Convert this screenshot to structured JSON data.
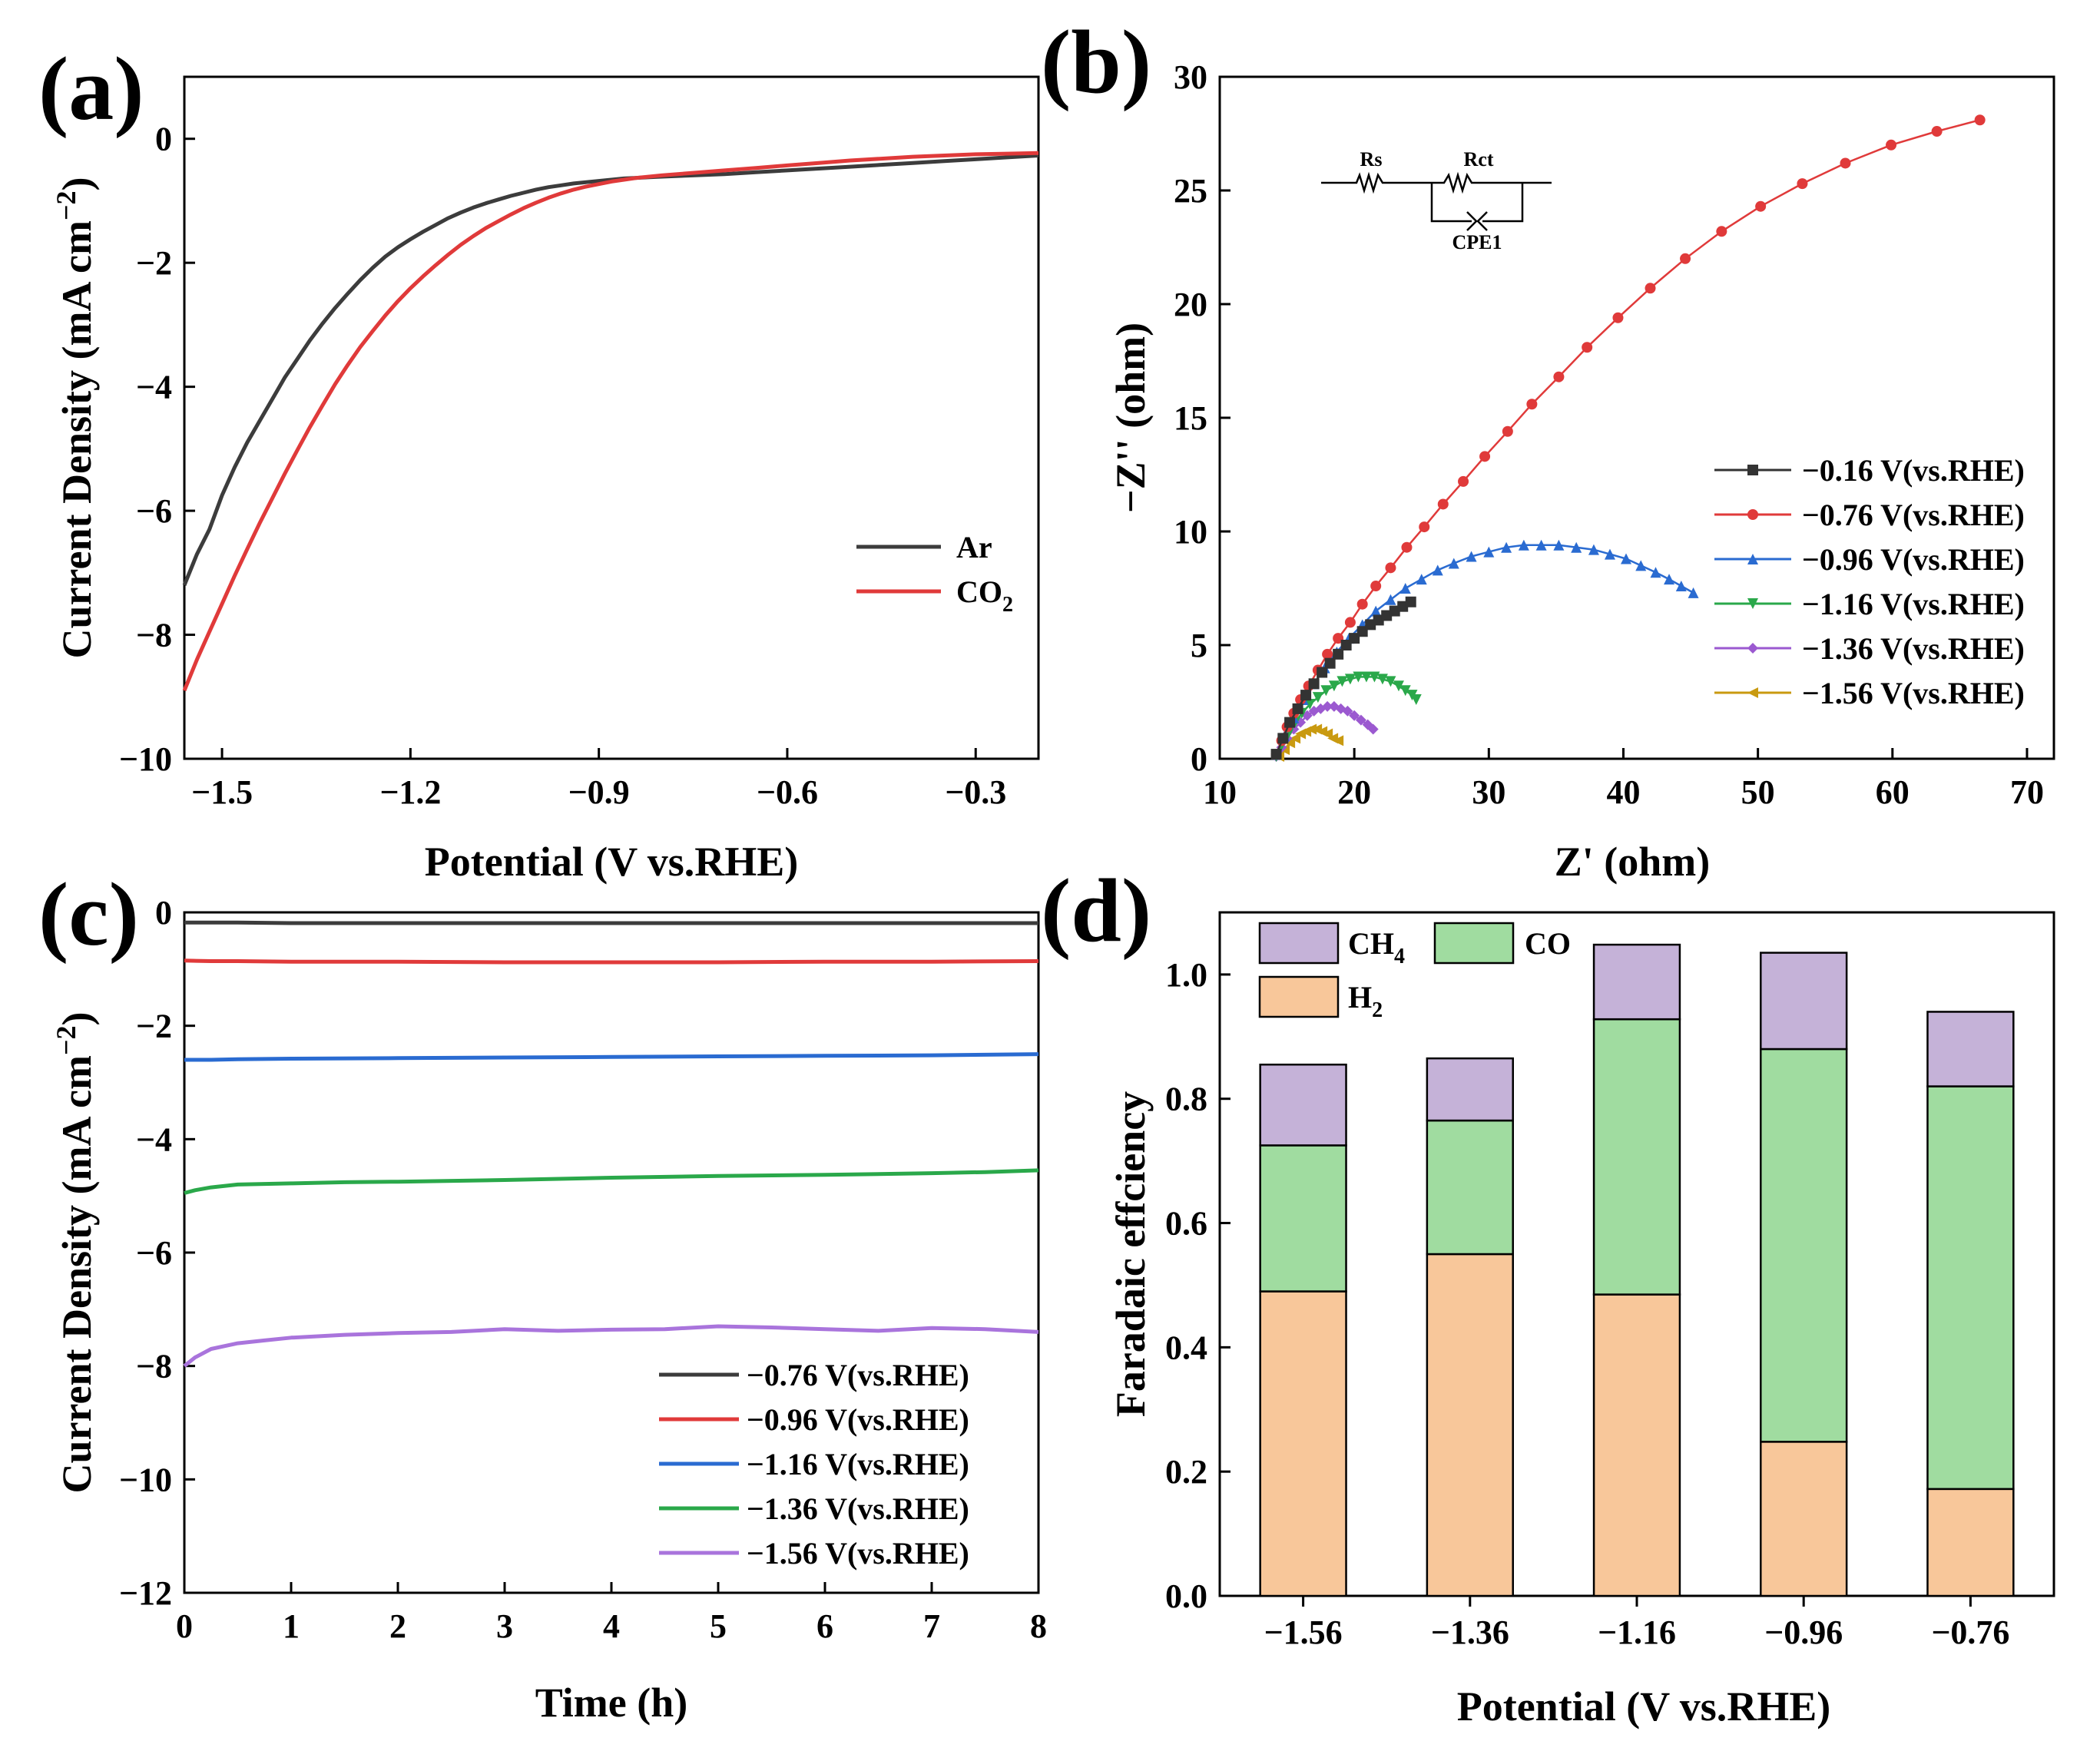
{
  "chart_data": [
    {
      "panel": "(a)",
      "type": "line",
      "xlabel": "Potential (V vs.RHE)",
      "ylabel": "Current Density (mA cm⁻²)",
      "xlim": [
        -1.56,
        -0.2
      ],
      "ylim": [
        -10,
        1
      ],
      "xticks": [
        "−1.5",
        "−1.2",
        "−0.9",
        "−0.6",
        "−0.3"
      ],
      "yticks": [
        "0",
        "−2",
        "−4",
        "−6",
        "−8",
        "−10"
      ],
      "legend_position": "lower-right",
      "series": [
        {
          "name": "Ar",
          "color": "#3c3c3c",
          "x": [
            -1.56,
            -1.54,
            -1.52,
            -1.5,
            -1.48,
            -1.46,
            -1.44,
            -1.42,
            -1.4,
            -1.38,
            -1.36,
            -1.34,
            -1.32,
            -1.3,
            -1.28,
            -1.26,
            -1.24,
            -1.22,
            -1.2,
            -1.18,
            -1.16,
            -1.14,
            -1.12,
            -1.1,
            -1.08,
            -1.06,
            -1.04,
            -1.02,
            -1.0,
            -0.98,
            -0.96,
            -0.94,
            -0.92,
            -0.9,
            -0.88,
            -0.86,
            -0.84,
            -0.82,
            -0.8,
            -0.75,
            -0.7,
            -0.65,
            -0.6,
            -0.55,
            -0.5,
            -0.45,
            -0.4,
            -0.35,
            -0.3,
            -0.25,
            -0.2
          ],
          "y": [
            -7.2,
            -6.7,
            -6.3,
            -5.75,
            -5.3,
            -4.9,
            -4.55,
            -4.2,
            -3.85,
            -3.55,
            -3.25,
            -2.98,
            -2.73,
            -2.5,
            -2.28,
            -2.08,
            -1.9,
            -1.75,
            -1.62,
            -1.5,
            -1.39,
            -1.28,
            -1.19,
            -1.11,
            -1.04,
            -0.98,
            -0.92,
            -0.87,
            -0.82,
            -0.78,
            -0.75,
            -0.72,
            -0.7,
            -0.68,
            -0.66,
            -0.64,
            -0.63,
            -0.62,
            -0.61,
            -0.59,
            -0.57,
            -0.54,
            -0.51,
            -0.48,
            -0.45,
            -0.42,
            -0.39,
            -0.36,
            -0.33,
            -0.3,
            -0.27
          ]
        },
        {
          "name": "CO2",
          "color": "#e03a3a",
          "x": [
            -1.56,
            -1.54,
            -1.52,
            -1.5,
            -1.48,
            -1.46,
            -1.44,
            -1.42,
            -1.4,
            -1.38,
            -1.36,
            -1.34,
            -1.32,
            -1.3,
            -1.28,
            -1.26,
            -1.24,
            -1.22,
            -1.2,
            -1.18,
            -1.16,
            -1.14,
            -1.12,
            -1.1,
            -1.08,
            -1.06,
            -1.04,
            -1.02,
            -1.0,
            -0.98,
            -0.96,
            -0.94,
            -0.92,
            -0.9,
            -0.88,
            -0.86,
            -0.84,
            -0.82,
            -0.8,
            -0.75,
            -0.7,
            -0.65,
            -0.6,
            -0.55,
            -0.5,
            -0.45,
            -0.4,
            -0.35,
            -0.3,
            -0.25,
            -0.2
          ],
          "y": [
            -8.9,
            -8.4,
            -7.95,
            -7.5,
            -7.05,
            -6.62,
            -6.2,
            -5.8,
            -5.4,
            -5.02,
            -4.65,
            -4.3,
            -3.96,
            -3.65,
            -3.36,
            -3.1,
            -2.85,
            -2.62,
            -2.41,
            -2.22,
            -2.04,
            -1.87,
            -1.71,
            -1.57,
            -1.44,
            -1.33,
            -1.22,
            -1.12,
            -1.03,
            -0.95,
            -0.88,
            -0.82,
            -0.77,
            -0.73,
            -0.69,
            -0.66,
            -0.63,
            -0.61,
            -0.59,
            -0.55,
            -0.51,
            -0.47,
            -0.43,
            -0.39,
            -0.35,
            -0.32,
            -0.29,
            -0.27,
            -0.25,
            -0.24,
            -0.23
          ]
        }
      ]
    },
    {
      "panel": "(b)",
      "type": "scatter",
      "xlabel": "Z' (ohm)",
      "ylabel": "−Z'' (ohm)",
      "xlim": [
        10,
        72
      ],
      "ylim": [
        0,
        30
      ],
      "xticks": [
        "10",
        "20",
        "30",
        "40",
        "50",
        "60",
        "70"
      ],
      "yticks": [
        "0",
        "5",
        "10",
        "15",
        "20",
        "25",
        "30"
      ],
      "legend_position": "right",
      "circuit_labels": [
        "Rs",
        "Rct",
        "CPE1"
      ],
      "series": [
        {
          "name": "−0.16 V(vs.RHE)",
          "color": "#333333",
          "marker": "square",
          "x": [
            14.2,
            14.7,
            15.2,
            15.8,
            16.4,
            17.0,
            17.6,
            18.2,
            18.8,
            19.4,
            20.0,
            20.6,
            21.2,
            21.8,
            22.4,
            23.0,
            23.6,
            24.2
          ],
          "y": [
            0.2,
            0.9,
            1.6,
            2.2,
            2.8,
            3.3,
            3.8,
            4.2,
            4.6,
            5.0,
            5.3,
            5.6,
            5.9,
            6.1,
            6.3,
            6.5,
            6.7,
            6.9
          ]
        },
        {
          "name": "−0.76 V(vs.RHE)",
          "color": "#e03a3a",
          "marker": "circle",
          "x": [
            14.2,
            14.6,
            15.0,
            15.5,
            16.0,
            16.6,
            17.3,
            18.0,
            18.8,
            19.7,
            20.6,
            21.6,
            22.7,
            23.9,
            25.2,
            26.6,
            28.1,
            29.7,
            31.4,
            33.2,
            35.2,
            37.3,
            39.6,
            42.0,
            44.6,
            47.3,
            50.2,
            53.3,
            56.5,
            59.9,
            63.3,
            66.5
          ],
          "y": [
            0.2,
            0.8,
            1.4,
            2.0,
            2.6,
            3.2,
            3.9,
            4.6,
            5.3,
            6.0,
            6.8,
            7.6,
            8.4,
            9.3,
            10.2,
            11.2,
            12.2,
            13.3,
            14.4,
            15.6,
            16.8,
            18.1,
            19.4,
            20.7,
            22.0,
            23.2,
            24.3,
            25.3,
            26.2,
            27.0,
            27.6,
            28.1
          ]
        },
        {
          "name": "−0.96 V(vs.RHE)",
          "color": "#2a6bd1",
          "marker": "triangle-up",
          "x": [
            14.2,
            14.8,
            15.5,
            16.2,
            17.0,
            17.8,
            18.7,
            19.6,
            20.6,
            21.6,
            22.7,
            23.8,
            25.0,
            26.2,
            27.4,
            28.7,
            30.0,
            31.3,
            32.6,
            33.9,
            35.2,
            36.5,
            37.8,
            39.0,
            40.2,
            41.3,
            42.4,
            43.4,
            44.3,
            45.2
          ],
          "y": [
            0.2,
            1.0,
            1.8,
            2.6,
            3.3,
            4.0,
            4.7,
            5.3,
            5.9,
            6.5,
            7.0,
            7.5,
            7.9,
            8.3,
            8.6,
            8.9,
            9.1,
            9.3,
            9.4,
            9.4,
            9.4,
            9.3,
            9.2,
            9.0,
            8.8,
            8.5,
            8.2,
            7.9,
            7.6,
            7.3
          ]
        },
        {
          "name": "−1.16 V(vs.RHE)",
          "color": "#2aa84a",
          "marker": "triangle-down",
          "x": [
            14.2,
            14.6,
            15.1,
            15.6,
            16.1,
            16.7,
            17.3,
            17.9,
            18.5,
            19.1,
            19.7,
            20.3,
            20.9,
            21.5,
            22.1,
            22.7,
            23.3,
            23.8,
            24.3,
            24.6
          ],
          "y": [
            0.1,
            0.6,
            1.1,
            1.6,
            2.0,
            2.4,
            2.7,
            3.0,
            3.2,
            3.4,
            3.5,
            3.6,
            3.6,
            3.6,
            3.5,
            3.4,
            3.2,
            3.0,
            2.8,
            2.6
          ]
        },
        {
          "name": "−1.36 V(vs.RHE)",
          "color": "#9b59d0",
          "marker": "diamond",
          "x": [
            14.2,
            14.6,
            15.0,
            15.5,
            16.0,
            16.5,
            17.0,
            17.5,
            18.0,
            18.5,
            19.0,
            19.5,
            20.0,
            20.5,
            21.0,
            21.4
          ],
          "y": [
            0.1,
            0.5,
            0.9,
            1.3,
            1.6,
            1.9,
            2.1,
            2.2,
            2.3,
            2.3,
            2.2,
            2.1,
            1.9,
            1.7,
            1.5,
            1.3
          ]
        },
        {
          "name": "−1.56 V(vs.RHE)",
          "color": "#c99a10",
          "marker": "triangle-left",
          "x": [
            14.4,
            14.8,
            15.2,
            15.6,
            16.0,
            16.4,
            16.8,
            17.2,
            17.6,
            18.0,
            18.4,
            18.8
          ],
          "y": [
            0.1,
            0.4,
            0.7,
            0.9,
            1.1,
            1.2,
            1.3,
            1.3,
            1.2,
            1.1,
            0.9,
            0.8
          ]
        }
      ]
    },
    {
      "panel": "(c)",
      "type": "line",
      "xlabel": "Time (h)",
      "ylabel": "Current Density (mA cm⁻²)",
      "xlim": [
        0,
        8
      ],
      "ylim": [
        -12,
        0
      ],
      "xticks": [
        "0",
        "1",
        "2",
        "3",
        "4",
        "5",
        "6",
        "7",
        "8"
      ],
      "yticks": [
        "0",
        "−2",
        "−4",
        "−6",
        "−8",
        "−10",
        "−12"
      ],
      "legend_position": "lower-right",
      "series": [
        {
          "name": "−0.76 V(vs.RHE)",
          "color": "#3c3c3c",
          "x": [
            0,
            0.25,
            0.5,
            1,
            2,
            3,
            4,
            5,
            6,
            7,
            8
          ],
          "y": [
            -0.18,
            -0.18,
            -0.18,
            -0.19,
            -0.19,
            -0.19,
            -0.19,
            -0.19,
            -0.19,
            -0.19,
            -0.19
          ]
        },
        {
          "name": "−0.96 V(vs.RHE)",
          "color": "#e03a3a",
          "x": [
            0,
            0.25,
            0.5,
            1,
            2,
            3,
            4,
            5,
            6,
            7,
            8
          ],
          "y": [
            -0.85,
            -0.86,
            -0.86,
            -0.87,
            -0.87,
            -0.88,
            -0.88,
            -0.88,
            -0.87,
            -0.87,
            -0.86
          ]
        },
        {
          "name": "−1.16 V(vs.RHE)",
          "color": "#2a6bd1",
          "x": [
            0,
            0.25,
            0.5,
            1,
            2,
            3,
            4,
            5,
            6,
            7,
            8
          ],
          "y": [
            -2.6,
            -2.6,
            -2.59,
            -2.58,
            -2.57,
            -2.56,
            -2.55,
            -2.54,
            -2.53,
            -2.52,
            -2.5
          ]
        },
        {
          "name": "−1.36 V(vs.RHE)",
          "color": "#2aa84a",
          "x": [
            0,
            0.1,
            0.25,
            0.5,
            1,
            1.5,
            2,
            3,
            4,
            5,
            6,
            7,
            7.5,
            8
          ],
          "y": [
            -4.95,
            -4.9,
            -4.85,
            -4.8,
            -4.78,
            -4.76,
            -4.75,
            -4.72,
            -4.68,
            -4.65,
            -4.63,
            -4.6,
            -4.58,
            -4.55
          ]
        },
        {
          "name": "−1.56 V(vs.RHE)",
          "color": "#a974dc",
          "x": [
            0,
            0.1,
            0.25,
            0.5,
            0.75,
            1,
            1.5,
            2,
            2.5,
            3,
            3.5,
            4,
            4.5,
            5,
            5.5,
            6,
            6.5,
            7,
            7.5,
            8
          ],
          "y": [
            -8.0,
            -7.85,
            -7.7,
            -7.6,
            -7.55,
            -7.5,
            -7.45,
            -7.42,
            -7.4,
            -7.35,
            -7.38,
            -7.36,
            -7.35,
            -7.3,
            -7.32,
            -7.35,
            -7.38,
            -7.33,
            -7.35,
            -7.4
          ]
        }
      ]
    },
    {
      "panel": "(d)",
      "type": "bar",
      "stacked": true,
      "xlabel": "Potential (V vs.RHE)",
      "ylabel": "Faradaic effciency",
      "ylim": [
        0,
        1.1
      ],
      "yticks": [
        "0.0",
        "0.2",
        "0.4",
        "0.6",
        "0.8",
        "1.0"
      ],
      "categories": [
        "−1.56",
        "−1.36",
        "−1.16",
        "−0.96",
        "−0.76"
      ],
      "legend_position": "top-left",
      "series": [
        {
          "name": "H2",
          "color": "#f8c79a",
          "values": [
            0.49,
            0.55,
            0.485,
            0.248,
            0.172
          ]
        },
        {
          "name": "CO",
          "color": "#a0dca0",
          "values": [
            0.235,
            0.215,
            0.443,
            0.632,
            0.648
          ]
        },
        {
          "name": "CH4",
          "color": "#c5b2d8",
          "values": [
            0.13,
            0.1,
            0.12,
            0.155,
            0.12
          ]
        }
      ]
    }
  ],
  "panel_labels": [
    "(a)",
    "(b)",
    "(c)",
    "(d)"
  ],
  "legend_text": {
    "a": {
      "ar": "Ar",
      "co2_main": "CO",
      "co2_sub": "2"
    },
    "d": {
      "ch4_main": "CH",
      "ch4_sub": "4",
      "co": "CO",
      "h2_main": "H",
      "h2_sub": "2"
    }
  }
}
